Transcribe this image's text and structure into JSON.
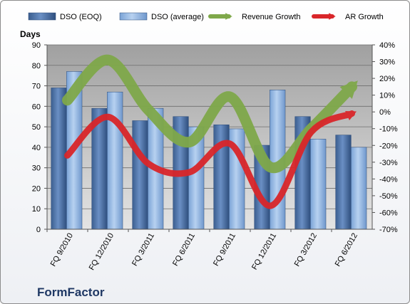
{
  "chart_data": {
    "type": "bar",
    "categories": [
      "FQ 9/2010",
      "FQ 12/2010",
      "FQ 3/2011",
      "FQ 6/2011",
      "FQ 9/2011",
      "FQ 12/2011",
      "FQ 3/2012",
      "FQ 6/2012"
    ],
    "series": [
      {
        "name": "DSO (EOQ)",
        "type": "bar",
        "axis": "left",
        "color": "#4a6fa5",
        "values": [
          69,
          59,
          53,
          55,
          51,
          41,
          55,
          46
        ]
      },
      {
        "name": "DSO (average)",
        "type": "bar",
        "axis": "left",
        "color": "#8fb4e3",
        "values": [
          77,
          67,
          59,
          50,
          49,
          68,
          44,
          40
        ]
      },
      {
        "name": "Revenue Growth",
        "type": "line",
        "axis": "right",
        "color": "#7fa84a",
        "values": [
          7,
          31,
          1,
          -18,
          9,
          -33,
          -10,
          15
        ]
      },
      {
        "name": "AR Growth",
        "type": "line",
        "axis": "right",
        "color": "#d9262a",
        "values": [
          -26,
          -3,
          -31,
          -36,
          -19,
          -56,
          -12,
          -1
        ]
      }
    ],
    "ylabel": "Days",
    "ylim": [
      0,
      90
    ],
    "yticks": [
      0,
      10,
      20,
      30,
      40,
      50,
      60,
      70,
      80,
      90
    ],
    "y2lim": [
      -70,
      40
    ],
    "y2ticks": [
      "40%",
      "30%",
      "20%",
      "10%",
      "0%",
      "-10%",
      "-20%",
      "-30%",
      "-40%",
      "-50%",
      "-60%",
      "-70%"
    ],
    "y2values": [
      40,
      30,
      20,
      10,
      0,
      -10,
      -20,
      -30,
      -40,
      -50,
      -60,
      -70
    ],
    "grid": true,
    "legend": "top",
    "brand": "FormFactor"
  }
}
